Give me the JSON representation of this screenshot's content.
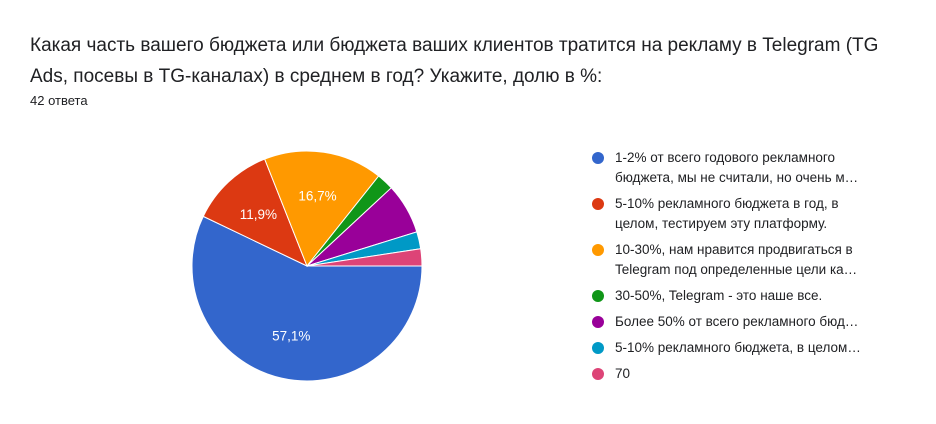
{
  "question": {
    "title": "Какая часть вашего бюджета или бюджета ваших клиентов тратится на рекламу в Telegram (TG Ads, посевы в TG-каналах) в среднем в год? Укажите, долю в %:",
    "response_count": "42 ответа"
  },
  "chart_data": {
    "type": "pie",
    "categories": [
      "1-2% от всего годового рекламного бюджета, мы не считали, но очень м…",
      "5-10% рекламного бюджета в год, в целом, тестируем эту платформу.",
      "10-30%, нам нравится продвигаться в Telegram под определенные цели ка…",
      "30-50%, Telegram - это наше все.",
      "Более 50% от всего рекламного бюд…",
      "5-10% рекламного бюджета, в целом…",
      "70"
    ],
    "values": [
      57.1,
      11.9,
      16.7,
      2.4,
      7.1,
      2.4,
      2.4
    ],
    "counts": [
      24,
      5,
      7,
      1,
      3,
      1,
      1
    ],
    "slice_labels": [
      "57,1%",
      "11,9%",
      "16,7%",
      "",
      "",
      "",
      ""
    ],
    "colors": [
      "#3366cc",
      "#dc3912",
      "#ff9900",
      "#109618",
      "#990099",
      "#0099c6",
      "#dd4477"
    ],
    "legend": [
      {
        "lines": [
          "1-2% от всего годового рекламного",
          "бюджета, мы не считали, но очень м…"
        ],
        "color": "#3366cc"
      },
      {
        "lines": [
          "5-10% рекламного бюджета в год, в",
          "целом, тестируем эту платформу."
        ],
        "color": "#dc3912"
      },
      {
        "lines": [
          "10-30%, нам нравится продвигаться в",
          "Telegram под определенные цели ка…"
        ],
        "color": "#ff9900"
      },
      {
        "lines": [
          "30-50%, Telegram - это наше все."
        ],
        "color": "#109618"
      },
      {
        "lines": [
          "Более 50% от всего рекламного бюд…"
        ],
        "color": "#990099"
      },
      {
        "lines": [
          "5-10% рекламного бюджета, в целом…"
        ],
        "color": "#0099c6"
      },
      {
        "lines": [
          "70"
        ],
        "color": "#dd4477"
      }
    ],
    "legend_position": "right",
    "start_angle": "3 o'clock",
    "direction": "clockwise"
  }
}
